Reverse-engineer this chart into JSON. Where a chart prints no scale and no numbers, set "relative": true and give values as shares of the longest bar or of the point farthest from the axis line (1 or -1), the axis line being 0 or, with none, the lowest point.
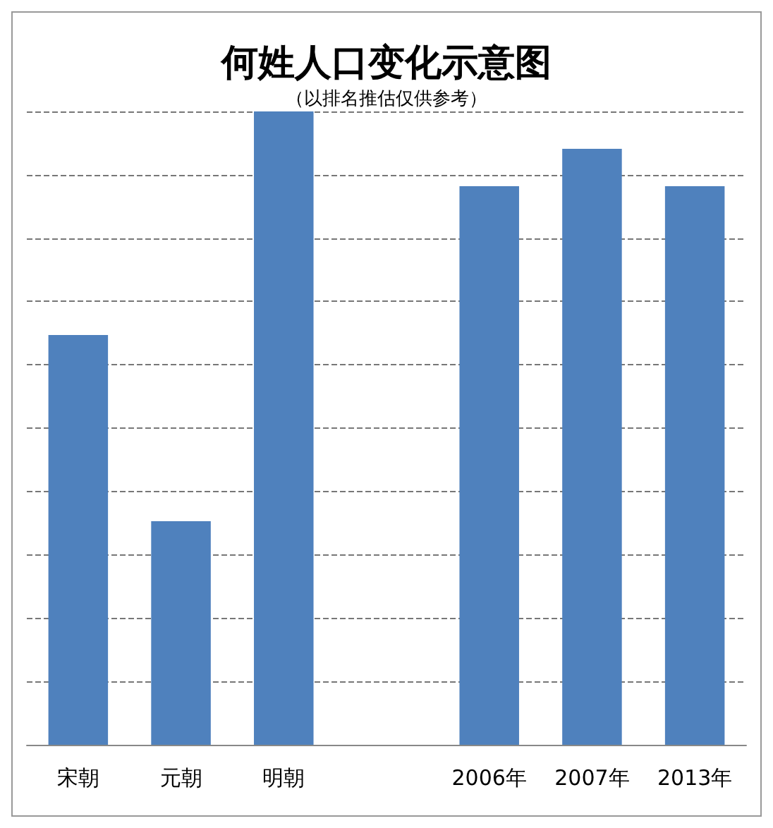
{
  "chart_data": {
    "type": "bar",
    "title": "何姓人口变化示意图",
    "subtitle": "（以排名推估仅供参考）",
    "relative": true,
    "categories": [
      "宋朝",
      "元朝",
      "明朝",
      null,
      "2006年",
      "2007年",
      "2013年"
    ],
    "values": [
      0.647,
      0.353,
      1,
      null,
      0.882,
      0.941,
      0.882
    ],
    "color": "#4f81bd",
    "grid": "y"
  }
}
